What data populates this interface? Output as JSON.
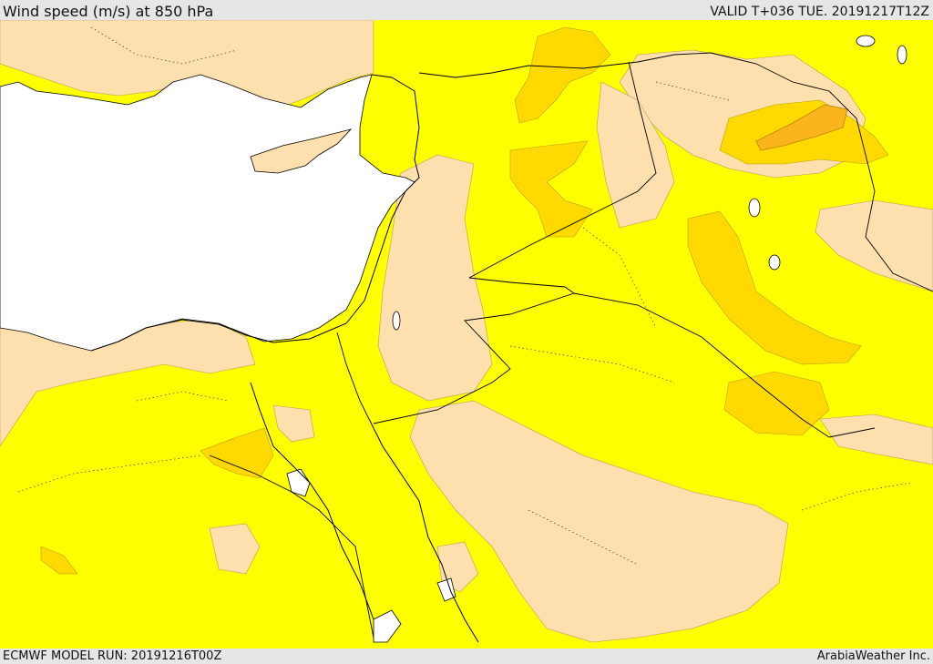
{
  "header": {
    "title": "Wind speed (m/s) at 850 hPa",
    "valid_time": "VALID T+036 TUE. 20191217T12Z"
  },
  "footer": {
    "model_run": "ECMWF MODEL RUN: 20191216T00Z",
    "credit": "ArabiaWeather Inc."
  },
  "colors": {
    "sea": "#ffffff",
    "band_low": "#fde0ae",
    "band_mid": "#ffff00",
    "band_high": "#ffd900",
    "band_max": "#fcb41c",
    "coastline": "#000000",
    "border": "#000000"
  }
}
